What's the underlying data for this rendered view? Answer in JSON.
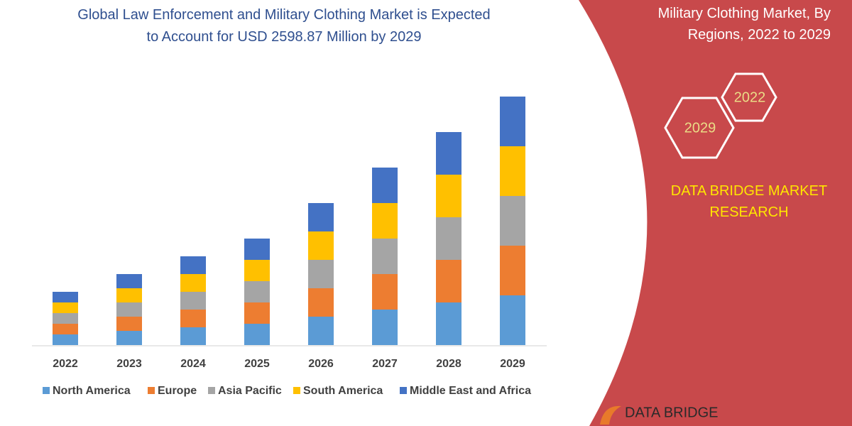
{
  "chart_data": {
    "type": "stacked-bar",
    "title": "Global Law Enforcement and Military Clothing Market is Expected to Account for USD 2598.87 Million by 2029",
    "categories": [
      "2022",
      "2023",
      "2024",
      "2025",
      "2026",
      "2027",
      "2028",
      "2029"
    ],
    "series": [
      {
        "name": "North America",
        "color": "#5b9bd5",
        "values": [
          15,
          20,
          25,
          30,
          40,
          50,
          60,
          70
        ]
      },
      {
        "name": "Europe",
        "color": "#ed7d31",
        "values": [
          15,
          20,
          25,
          30,
          40,
          50,
          60,
          70
        ]
      },
      {
        "name": "Asia Pacific",
        "color": "#a5a5a5",
        "values": [
          15,
          20,
          25,
          30,
          40,
          50,
          60,
          70
        ]
      },
      {
        "name": "South America",
        "color": "#ffc000",
        "values": [
          15,
          20,
          25,
          30,
          40,
          50,
          60,
          70
        ]
      },
      {
        "name": "Middle East and Africa",
        "color": "#4472c4",
        "values": [
          15,
          20,
          25,
          30,
          40,
          50,
          60,
          70
        ]
      }
    ],
    "ylim": [
      0,
      400
    ]
  },
  "panel": {
    "title": "Military Clothing Market, By Regions, 2022 to 2029",
    "hexagons": [
      "2022",
      "2029"
    ],
    "brand": "DATA BRIDGE MARKET RESEARCH",
    "logo": "DATA BRIDGE"
  }
}
